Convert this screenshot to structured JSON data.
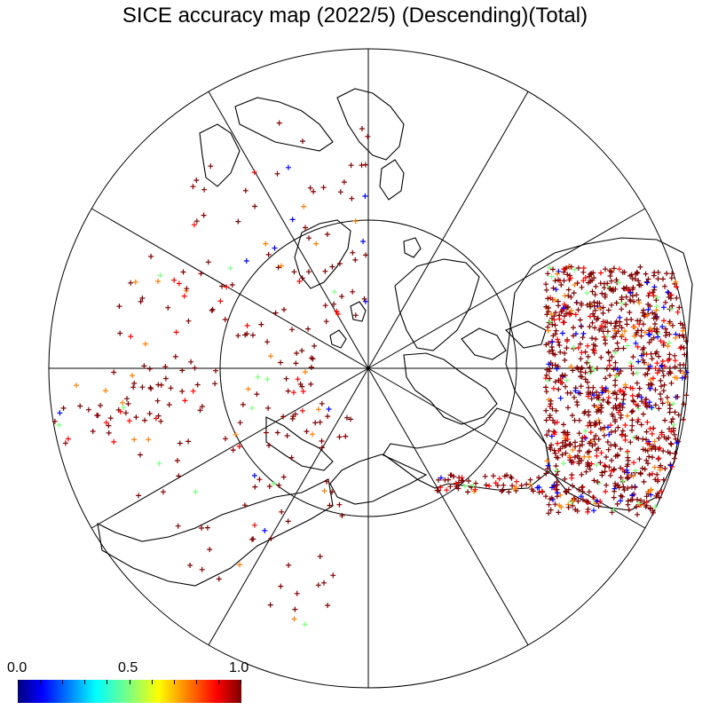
{
  "title": "SICE accuracy map (2022/5) (Descending)(Total)",
  "colorbar": {
    "min_label": "0.0",
    "mid_label": "0.5",
    "max_label": "1.0",
    "colormap": "jet",
    "range": [
      0.0,
      1.0
    ]
  },
  "map": {
    "projection": "north-polar-stereographic",
    "meridian_lines": 12,
    "inner_latitude_circle": true,
    "marker": "+",
    "dominant_value_color": "#8b0000"
  }
}
